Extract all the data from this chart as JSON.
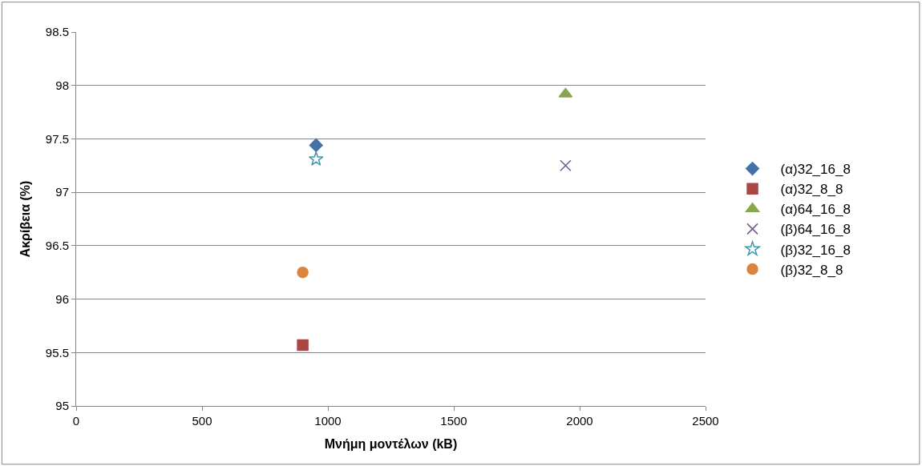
{
  "chart_data": {
    "type": "scatter",
    "xlabel": "Μνήμη μοντέλων (kB)",
    "ylabel": "Ακρίβεια (%)",
    "xlim": [
      0,
      2500
    ],
    "xticks": [
      0,
      500,
      1000,
      1500,
      2000,
      2500
    ],
    "ylim": [
      95,
      98.5
    ],
    "yticks": [
      95,
      95.5,
      96,
      96.5,
      97,
      97.5,
      98,
      98.5
    ],
    "grid": "y",
    "legend": "right",
    "series": [
      {
        "name": "(α)32_16_8",
        "color": "#4472a8",
        "marker": "diamond",
        "x": [
          953
        ],
        "values": [
          97.44
        ]
      },
      {
        "name": "(α)32_8_8",
        "color": "#aa4643",
        "marker": "square",
        "x": [
          900
        ],
        "values": [
          95.57
        ]
      },
      {
        "name": "(α)64_16_8",
        "color": "#89a54e",
        "marker": "triangle",
        "x": [
          1944
        ],
        "values": [
          97.92
        ]
      },
      {
        "name": "(β)64_16_8",
        "color": "#71588f",
        "marker": "cross",
        "x": [
          1944
        ],
        "values": [
          97.25
        ]
      },
      {
        "name": "(β)32_16_8",
        "color": "#4198af",
        "marker": "star",
        "x": [
          953
        ],
        "values": [
          97.31
        ]
      },
      {
        "name": "(β)32_8_8",
        "color": "#db843d",
        "marker": "circle",
        "x": [
          900
        ],
        "values": [
          96.25
        ]
      }
    ]
  }
}
